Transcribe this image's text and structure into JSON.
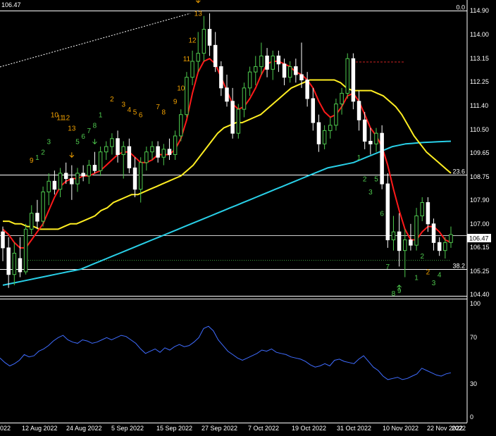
{
  "chart_data": [
    {
      "type": "candlestick",
      "current_price_label": "106.47",
      "y_ticks": [
        "114.90",
        "114.00",
        "113.15",
        "112.25",
        "111.40",
        "110.50",
        "109.65",
        "108.75",
        "107.90",
        "107.00",
        "106.15",
        "105.25",
        "104.40"
      ],
      "ylim": [
        104.2,
        115.3
      ],
      "x_ticks": [
        "022",
        "12 Aug 2022",
        "24 Aug 2022",
        "5 Sep 2022",
        "15 Sep 2022",
        "27 Sep 2022",
        "7 Oct 2022",
        "19 Oct 2022",
        "31 Oct 2022",
        "10 Nov 2022",
        "22 Nov 2022",
        "2022"
      ],
      "fib_levels": [
        {
          "label": "0.0",
          "value": 114.9
        },
        {
          "label": "23.6",
          "value": 108.75
        },
        {
          "label": "38.2",
          "value": 105.2
        }
      ],
      "current_price": 106.47,
      "dotted_support": 105.55,
      "candles": [
        {
          "o": 106.6,
          "h": 106.8,
          "l": 105.5,
          "c": 106.0
        },
        {
          "o": 106.0,
          "h": 106.4,
          "l": 104.5,
          "c": 105.0
        },
        {
          "o": 105.0,
          "h": 106.2,
          "l": 104.6,
          "c": 105.8
        },
        {
          "o": 105.6,
          "h": 106.4,
          "l": 104.9,
          "c": 105.1
        },
        {
          "o": 105.1,
          "h": 106.9,
          "l": 105.0,
          "c": 106.7
        },
        {
          "o": 106.7,
          "h": 107.6,
          "l": 106.5,
          "c": 107.3
        },
        {
          "o": 107.3,
          "h": 107.8,
          "l": 106.7,
          "c": 107.0
        },
        {
          "o": 107.0,
          "h": 108.3,
          "l": 106.8,
          "c": 108.1
        },
        {
          "o": 108.1,
          "h": 108.8,
          "l": 107.6,
          "c": 108.5
        },
        {
          "o": 108.5,
          "h": 108.9,
          "l": 108.0,
          "c": 108.2
        },
        {
          "o": 108.2,
          "h": 109.0,
          "l": 107.9,
          "c": 108.8
        },
        {
          "o": 108.8,
          "h": 109.2,
          "l": 108.4,
          "c": 108.6
        },
        {
          "o": 108.6,
          "h": 109.1,
          "l": 107.8,
          "c": 108.4
        },
        {
          "o": 108.4,
          "h": 109.0,
          "l": 108.1,
          "c": 108.8
        },
        {
          "o": 108.8,
          "h": 109.1,
          "l": 108.5,
          "c": 108.7
        },
        {
          "o": 108.7,
          "h": 109.3,
          "l": 108.4,
          "c": 109.1
        },
        {
          "o": 109.1,
          "h": 109.6,
          "l": 108.8,
          "c": 108.9
        },
        {
          "o": 108.9,
          "h": 109.8,
          "l": 108.7,
          "c": 109.6
        },
        {
          "o": 109.6,
          "h": 110.0,
          "l": 109.3,
          "c": 109.8
        },
        {
          "o": 109.8,
          "h": 110.3,
          "l": 109.5,
          "c": 110.1
        },
        {
          "o": 110.1,
          "h": 110.4,
          "l": 109.2,
          "c": 109.5
        },
        {
          "o": 109.5,
          "h": 110.0,
          "l": 108.6,
          "c": 109.8
        },
        {
          "o": 109.8,
          "h": 110.1,
          "l": 108.8,
          "c": 109.0
        },
        {
          "o": 109.0,
          "h": 109.4,
          "l": 107.9,
          "c": 108.2
        },
        {
          "o": 108.2,
          "h": 109.4,
          "l": 107.7,
          "c": 109.2
        },
        {
          "o": 109.2,
          "h": 109.8,
          "l": 108.9,
          "c": 109.6
        },
        {
          "o": 109.6,
          "h": 110.0,
          "l": 109.3,
          "c": 109.8
        },
        {
          "o": 109.8,
          "h": 110.0,
          "l": 109.2,
          "c": 109.4
        },
        {
          "o": 109.4,
          "h": 109.9,
          "l": 109.1,
          "c": 109.7
        },
        {
          "o": 109.7,
          "h": 110.1,
          "l": 109.3,
          "c": 109.5
        },
        {
          "o": 109.5,
          "h": 110.4,
          "l": 109.3,
          "c": 110.2
        },
        {
          "o": 110.2,
          "h": 111.2,
          "l": 110.0,
          "c": 111.0
        },
        {
          "o": 111.0,
          "h": 112.6,
          "l": 110.9,
          "c": 112.4
        },
        {
          "o": 112.4,
          "h": 113.4,
          "l": 112.1,
          "c": 113.0
        },
        {
          "o": 113.0,
          "h": 114.1,
          "l": 112.6,
          "c": 113.3
        },
        {
          "o": 113.3,
          "h": 114.7,
          "l": 113.0,
          "c": 114.2
        },
        {
          "o": 114.2,
          "h": 114.8,
          "l": 113.2,
          "c": 113.6
        },
        {
          "o": 113.6,
          "h": 114.1,
          "l": 112.6,
          "c": 112.8
        },
        {
          "o": 112.8,
          "h": 113.0,
          "l": 111.7,
          "c": 112.0
        },
        {
          "o": 112.0,
          "h": 112.5,
          "l": 111.3,
          "c": 111.5
        },
        {
          "o": 111.5,
          "h": 112.0,
          "l": 110.1,
          "c": 110.3
        },
        {
          "o": 110.3,
          "h": 111.4,
          "l": 110.1,
          "c": 111.2
        },
        {
          "o": 111.2,
          "h": 112.2,
          "l": 110.9,
          "c": 112.0
        },
        {
          "o": 112.0,
          "h": 112.8,
          "l": 111.7,
          "c": 112.6
        },
        {
          "o": 112.6,
          "h": 113.2,
          "l": 112.1,
          "c": 112.8
        },
        {
          "o": 112.8,
          "h": 113.7,
          "l": 112.5,
          "c": 113.2
        },
        {
          "o": 113.2,
          "h": 113.5,
          "l": 112.4,
          "c": 112.7
        },
        {
          "o": 112.7,
          "h": 113.4,
          "l": 112.3,
          "c": 113.2
        },
        {
          "o": 113.2,
          "h": 113.4,
          "l": 112.6,
          "c": 112.9
        },
        {
          "o": 112.9,
          "h": 113.1,
          "l": 112.1,
          "c": 112.4
        },
        {
          "o": 112.4,
          "h": 113.0,
          "l": 112.2,
          "c": 112.8
        },
        {
          "o": 112.8,
          "h": 113.1,
          "l": 112.2,
          "c": 112.5
        },
        {
          "o": 112.5,
          "h": 113.7,
          "l": 112.0,
          "c": 112.3
        },
        {
          "o": 112.3,
          "h": 112.6,
          "l": 111.3,
          "c": 111.6
        },
        {
          "o": 111.6,
          "h": 112.0,
          "l": 110.4,
          "c": 110.7
        },
        {
          "o": 110.7,
          "h": 111.0,
          "l": 109.6,
          "c": 109.9
        },
        {
          "o": 109.9,
          "h": 110.6,
          "l": 109.7,
          "c": 110.4
        },
        {
          "o": 110.4,
          "h": 110.9,
          "l": 110.1,
          "c": 110.6
        },
        {
          "o": 110.6,
          "h": 111.6,
          "l": 110.4,
          "c": 111.4
        },
        {
          "o": 111.4,
          "h": 112.0,
          "l": 111.0,
          "c": 111.8
        },
        {
          "o": 111.8,
          "h": 113.3,
          "l": 111.6,
          "c": 113.1
        },
        {
          "o": 113.1,
          "h": 113.3,
          "l": 111.2,
          "c": 111.5
        },
        {
          "o": 111.5,
          "h": 111.9,
          "l": 110.4,
          "c": 110.8
        },
        {
          "o": 110.8,
          "h": 111.1,
          "l": 109.7,
          "c": 110.0
        },
        {
          "o": 110.0,
          "h": 110.5,
          "l": 109.5,
          "c": 109.9
        },
        {
          "o": 109.9,
          "h": 110.5,
          "l": 109.6,
          "c": 110.3
        },
        {
          "o": 110.3,
          "h": 110.6,
          "l": 108.2,
          "c": 108.4
        },
        {
          "o": 108.4,
          "h": 108.8,
          "l": 106.0,
          "c": 106.3
        },
        {
          "o": 106.3,
          "h": 107.2,
          "l": 105.9,
          "c": 106.6
        },
        {
          "o": 106.6,
          "h": 107.3,
          "l": 105.3,
          "c": 105.9
        },
        {
          "o": 105.9,
          "h": 106.7,
          "l": 104.9,
          "c": 106.3
        },
        {
          "o": 106.3,
          "h": 106.9,
          "l": 105.9,
          "c": 106.1
        },
        {
          "o": 106.1,
          "h": 107.5,
          "l": 105.9,
          "c": 107.2
        },
        {
          "o": 107.2,
          "h": 107.9,
          "l": 107.0,
          "c": 107.7
        },
        {
          "o": 107.7,
          "h": 107.9,
          "l": 106.6,
          "c": 106.9
        },
        {
          "o": 106.9,
          "h": 107.1,
          "l": 105.9,
          "c": 106.2
        },
        {
          "o": 106.2,
          "h": 106.4,
          "l": 105.7,
          "c": 105.9
        },
        {
          "o": 105.9,
          "h": 106.4,
          "l": 105.6,
          "c": 106.2
        },
        {
          "o": 106.2,
          "h": 106.8,
          "l": 106.0,
          "c": 106.5
        }
      ],
      "ma_red": [
        106.7,
        106.5,
        106.2,
        106.0,
        106.0,
        106.3,
        106.6,
        106.9,
        107.4,
        107.9,
        108.3,
        108.5,
        108.6,
        108.6,
        108.7,
        108.7,
        108.8,
        108.9,
        109.1,
        109.3,
        109.5,
        109.6,
        109.6,
        109.4,
        109.2,
        109.2,
        109.3,
        109.5,
        109.5,
        109.5,
        109.7,
        110.1,
        110.8,
        111.8,
        112.6,
        113.0,
        113.1,
        112.9,
        112.4,
        111.9,
        111.4,
        111.2,
        111.3,
        111.6,
        112.0,
        112.5,
        112.9,
        113.0,
        113.0,
        112.9,
        112.8,
        112.6,
        112.5,
        112.3,
        112.0,
        111.5,
        111.1,
        110.9,
        111.0,
        111.3,
        111.7,
        111.8,
        111.5,
        111.0,
        110.5,
        110.2,
        109.8,
        109.1,
        108.2,
        107.4,
        106.7,
        106.3,
        106.3,
        106.6,
        106.8,
        106.8,
        106.6,
        106.3,
        106.2
      ],
      "ma_yellow": [
        107.0,
        107.0,
        106.9,
        106.9,
        106.8,
        106.8,
        106.7,
        106.7,
        106.7,
        106.7,
        106.8,
        106.9,
        106.9,
        107.0,
        107.1,
        107.2,
        107.4,
        107.5,
        107.7,
        107.8,
        107.9,
        108.0,
        108.0,
        108.1,
        108.2,
        108.3,
        108.4,
        108.5,
        108.6,
        108.7,
        108.9,
        109.1,
        109.4,
        109.7,
        110.0,
        110.3,
        110.5,
        110.6,
        110.7,
        110.7,
        110.8,
        110.9,
        111.0,
        111.2,
        111.4,
        111.6,
        111.8,
        112.0,
        112.1,
        112.2,
        112.3,
        112.3,
        112.3,
        112.3,
        112.3,
        112.2,
        112.0,
        111.9,
        111.9,
        111.9,
        111.9,
        111.8,
        111.7,
        111.5,
        111.3,
        111.0,
        110.6,
        110.2,
        109.9,
        109.6,
        109.4,
        109.2,
        109.0,
        108.8
      ],
      "ma_cyan": [
        104.6,
        104.65,
        104.7,
        104.75,
        104.8,
        104.85,
        104.9,
        104.95,
        105.0,
        105.05,
        105.1,
        105.15,
        105.2,
        105.3,
        105.4,
        105.5,
        105.6,
        105.7,
        105.8,
        105.9,
        106.0,
        106.1,
        106.2,
        106.3,
        106.4,
        106.5,
        106.6,
        106.7,
        106.8,
        106.9,
        107.0,
        107.1,
        107.2,
        107.3,
        107.4,
        107.5,
        107.6,
        107.7,
        107.8,
        107.9,
        108.0,
        108.1,
        108.2,
        108.3,
        108.4,
        108.5,
        108.6,
        108.7,
        108.8,
        108.9,
        109.0,
        109.05,
        109.1,
        109.15,
        109.2,
        109.3,
        109.4,
        109.5,
        109.6,
        109.7,
        109.8,
        109.85,
        109.9,
        109.92,
        109.94,
        109.96,
        109.97,
        109.98,
        109.99,
        110.0
      ],
      "td_labels": [
        {
          "i": 5,
          "t": "9",
          "c": "#f0a000",
          "off": 1.6
        },
        {
          "i": 6,
          "t": "1",
          "c": "#4ec94e",
          "off": 1.5
        },
        {
          "i": 7,
          "t": "2",
          "c": "#4ec94e",
          "off": 1.2
        },
        {
          "i": 8,
          "t": "3",
          "c": "#4ec94e",
          "off": 1.1
        },
        {
          "i": 9,
          "t": "10",
          "c": "#f0a000",
          "off": 2.0
        },
        {
          "i": 10,
          "t": "11",
          "c": "#f0a000",
          "off": 1.8
        },
        {
          "i": 11,
          "t": "12",
          "c": "#f0a000",
          "off": 1.6
        },
        {
          "i": 12,
          "t": "13",
          "c": "#f0a000",
          "off": 1.3
        },
        {
          "i": 13,
          "t": "5",
          "c": "#4ec94e",
          "off": 0.9
        },
        {
          "i": 14,
          "t": "6",
          "c": "#4ec94e",
          "off": 1.0
        },
        {
          "i": 15,
          "t": "7",
          "c": "#4ec94e",
          "off": 1.0
        },
        {
          "i": 16,
          "t": "8",
          "c": "#4ec94e",
          "off": 0.9
        },
        {
          "i": 17,
          "t": "1",
          "c": "#4ec94e",
          "off": 1.1
        },
        {
          "i": 19,
          "t": "2",
          "c": "#f0a000",
          "off": 1.2
        },
        {
          "i": 21,
          "t": "3",
          "c": "#f0a000",
          "off": 1.3
        },
        {
          "i": 22,
          "t": "4",
          "c": "#f0a000",
          "off": 1.0
        },
        {
          "i": 23,
          "t": "5",
          "c": "#f0a000",
          "off": 1.6
        },
        {
          "i": 24,
          "t": "6",
          "c": "#f0a000",
          "off": 1.5
        },
        {
          "i": 27,
          "t": "7",
          "c": "#f0a000",
          "off": 1.2
        },
        {
          "i": 28,
          "t": "8",
          "c": "#f0a000",
          "off": 1.1
        },
        {
          "i": 30,
          "t": "9",
          "c": "#f0a000",
          "off": 1.0
        },
        {
          "i": 31,
          "t": "10",
          "c": "#f0a000",
          "off": 0.7
        },
        {
          "i": 32,
          "t": "11",
          "c": "#f0a000",
          "off": 0.4
        },
        {
          "i": 33,
          "t": "12",
          "c": "#f0a000",
          "off": 0.3
        },
        {
          "i": 34,
          "t": "13",
          "c": "#f0a000",
          "off": 0.6
        },
        {
          "i": 62,
          "t": "1",
          "c": "#4ec94e",
          "off": -1.1
        },
        {
          "i": 63,
          "t": "2",
          "c": "#4ec94e",
          "off": -1.2
        },
        {
          "i": 64,
          "t": "3",
          "c": "#4ec94e",
          "off": -1.5
        },
        {
          "i": 65,
          "t": "5",
          "c": "#4ec94e",
          "off": -1.1
        },
        {
          "i": 66,
          "t": "6",
          "c": "#4ec94e",
          "off": -1.0
        },
        {
          "i": 67,
          "t": "7",
          "c": "#4ec94e",
          "off": -0.8
        },
        {
          "i": 68,
          "t": "8",
          "c": "#4ec94e",
          "off": -1.7
        },
        {
          "i": 69,
          "t": "9",
          "c": "#4ec94e",
          "off": -1.0
        },
        {
          "i": 72,
          "t": "1",
          "c": "#4ec94e",
          "off": -1.1
        },
        {
          "i": 73,
          "t": "2",
          "c": "#4ec94e",
          "off": -1.4
        },
        {
          "i": 74,
          "t": "2",
          "c": "#f0a000",
          "off": -1.6
        },
        {
          "i": 75,
          "t": "3",
          "c": "#4ec94e",
          "off": -1.3
        },
        {
          "i": 76,
          "t": "4",
          "c": "#4ec94e",
          "off": -0.8
        }
      ],
      "arrows": [
        {
          "i": 12,
          "dir": "down",
          "c": "#f0a000",
          "v": 109.4
        },
        {
          "i": 16,
          "dir": "down",
          "c": "#4ec94e",
          "v": 109.9
        },
        {
          "i": 34,
          "dir": "down",
          "c": "#f0a000",
          "v": 115.2
        },
        {
          "i": 69,
          "dir": "up",
          "c": "#4ec94e",
          "v": 104.6
        }
      ]
    },
    {
      "type": "line",
      "y_ticks": [
        "100",
        "70",
        "30",
        "0"
      ],
      "ylim": [
        0,
        100
      ],
      "values": [
        52,
        48,
        45,
        47,
        50,
        55,
        53,
        54,
        58,
        60,
        63,
        67,
        70,
        72,
        68,
        66,
        65,
        68,
        67,
        65,
        66,
        68,
        70,
        68,
        70,
        72,
        71,
        68,
        65,
        60,
        56,
        58,
        60,
        57,
        61,
        59,
        62,
        64,
        62,
        63,
        66,
        70,
        78,
        80,
        76,
        68,
        63,
        58,
        55,
        52,
        50,
        52,
        54,
        56,
        59,
        58,
        60,
        57,
        56,
        55,
        53,
        52,
        51,
        49,
        46,
        44,
        45,
        47,
        45,
        50,
        51,
        49,
        48,
        47,
        51,
        54,
        49,
        44,
        41,
        36,
        33,
        34,
        35,
        33,
        34,
        36,
        38,
        43,
        41,
        39,
        37,
        36,
        38,
        39
      ]
    }
  ],
  "colors": {
    "background": "#000000",
    "grid": "#ffffff",
    "bull_candle": "#4ec94e",
    "bear_candle": "#ffffff",
    "ma_fast": "#ff1a1a",
    "ma_mid": "#ffee22",
    "ma_slow": "#29d0e8",
    "rsi_line": "#3f6cff",
    "resistance": "#cc2222"
  }
}
